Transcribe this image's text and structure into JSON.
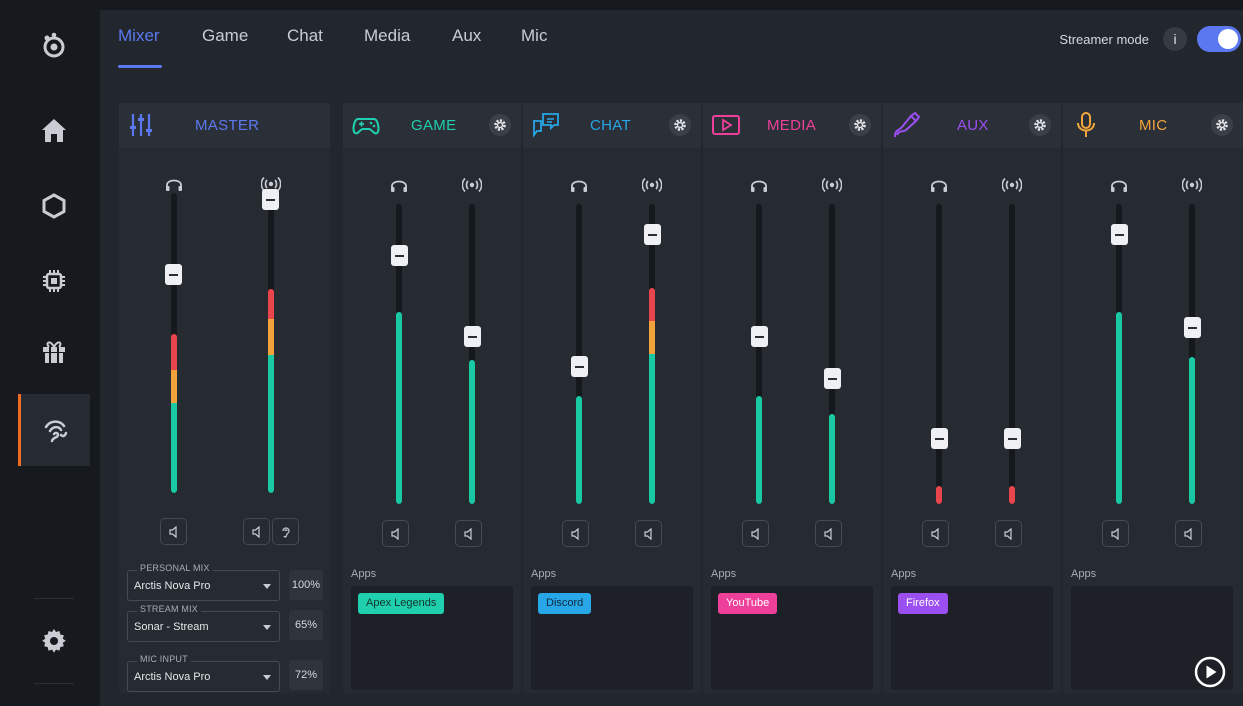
{
  "sidebar": {
    "items": [
      {
        "name": "steelseries-logo-icon"
      },
      {
        "name": "home-icon"
      },
      {
        "name": "hexagon-icon"
      },
      {
        "name": "chip-icon"
      },
      {
        "name": "gift-icon"
      },
      {
        "name": "sonar-icon",
        "active": true
      },
      {
        "name": "gear-icon"
      }
    ]
  },
  "tabs": [
    "Mixer",
    "Game",
    "Chat",
    "Media",
    "Aux",
    "Mic"
  ],
  "active_tab": "Mixer",
  "streamer_mode": {
    "label": "Streamer mode",
    "info": "i",
    "enabled": true
  },
  "master": {
    "title": "MASTER",
    "color": "#5b78f0",
    "channels": [
      {
        "icon": "headphones-icon",
        "level": 0.73,
        "meter": 0.53
      },
      {
        "icon": "broadcast-icon",
        "level": 0.98,
        "meter": 0.68
      }
    ],
    "dropdowns": [
      {
        "label": "PERSONAL MIX",
        "value": "Arctis Nova Pro",
        "percent": "100%"
      },
      {
        "label": "STREAM MIX",
        "value": "Sonar - Stream",
        "percent": "65%"
      },
      {
        "label": "MIC INPUT",
        "value": "Arctis Nova Pro",
        "percent": "72%"
      }
    ]
  },
  "panels": [
    {
      "key": "game",
      "title": "GAME",
      "color": "#1fcfad",
      "apps_label": "Apps",
      "app": "Apex Legends",
      "app_color": "#1fcfad",
      "app_text": "#14332c",
      "channels": [
        {
          "level": 0.83,
          "meter": 0.64
        },
        {
          "level": 0.56,
          "meter": 0.48
        }
      ]
    },
    {
      "key": "chat",
      "title": "CHAT",
      "color": "#27a6e8",
      "apps_label": "Apps",
      "app": "Discord",
      "app_color": "#27a6e8",
      "app_text": "#0f2a3a",
      "channels": [
        {
          "level": 0.46,
          "meter": 0.36
        },
        {
          "level": 0.9,
          "meter": 0.72
        }
      ]
    },
    {
      "key": "media",
      "title": "MEDIA",
      "color": "#ee3f9a",
      "apps_label": "Apps",
      "app": "YouTube",
      "app_color": "#ee3f9a",
      "app_text": "#ffffff",
      "channels": [
        {
          "level": 0.56,
          "meter": 0.36
        },
        {
          "level": 0.42,
          "meter": 0.3
        }
      ]
    },
    {
      "key": "aux",
      "title": "AUX",
      "color": "#9b4ff0",
      "apps_label": "Apps",
      "app": "Firefox",
      "app_color": "#9b4ff0",
      "app_text": "#ffffff",
      "channels": [
        {
          "level": 0.22,
          "meter": 0.06
        },
        {
          "level": 0.22,
          "meter": 0.06
        }
      ]
    },
    {
      "key": "mic",
      "title": "MIC",
      "color": "#f2a53a",
      "apps_label": "Apps",
      "app": "",
      "app_color": "",
      "app_text": "",
      "channels": [
        {
          "level": 0.9,
          "meter": 0.64
        },
        {
          "level": 0.59,
          "meter": 0.49
        }
      ]
    }
  ],
  "meter_colors": {
    "green": "#19c9a3",
    "orange": "#f2a23a",
    "red": "#e8464c"
  }
}
